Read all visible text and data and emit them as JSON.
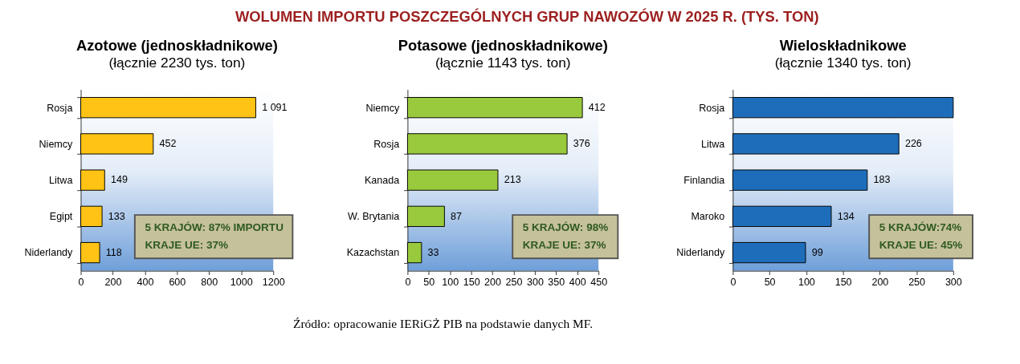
{
  "chart_data": [
    {
      "type": "other",
      "title": "WOLUMEN IMPORTU POSZCZEGÓLNYCH GRUP NAWOZÓW W 2025 R. (TYS. TON)"
    },
    {
      "type": "bar",
      "orientation": "horizontal",
      "title": "Azotowe (jednoskładnikowe)",
      "subtitle": "(łącznie 2230 tys. ton)",
      "categories": [
        "Rosja",
        "Niemcy",
        "Litwa",
        "Egipt",
        "Niderlandy"
      ],
      "values": [
        1091,
        452,
        149,
        133,
        118
      ],
      "color": "#fec314",
      "value_labels": [
        "1 091",
        "452",
        "149",
        "133",
        "118"
      ],
      "xlim": [
        0,
        1200
      ],
      "xticks": [
        0,
        200,
        400,
        600,
        800,
        1000,
        1200
      ],
      "annotations": [
        "5 KRAJÓW: 87% IMPORTU",
        "KRAJE UE: 37%"
      ]
    },
    {
      "type": "bar",
      "orientation": "horizontal",
      "title": "Potasowe (jednoskładnikowe)",
      "subtitle": "(łącznie 1143 tys. ton)",
      "categories": [
        "Niemcy",
        "Rosja",
        "Kanada",
        "W. Brytania",
        "Kazachstan"
      ],
      "values": [
        412,
        376,
        213,
        87,
        33
      ],
      "color": "#99c93c",
      "data_labels": true,
      "xlim": [
        0,
        450
      ],
      "xticks": [
        0,
        50,
        100,
        150,
        200,
        250,
        300,
        350,
        400,
        450
      ],
      "annotations": [
        "5 KRAJÓW: 98%",
        "KRAJE UE: 37%"
      ]
    },
    {
      "type": "bar",
      "orientation": "horizontal",
      "title": "Wieloskładnikowe",
      "subtitle": "(łącznie 1340 tys. ton)",
      "categories": [
        "Rosja",
        "Litwa",
        "Finlandia",
        "Maroko",
        "Niderlandy"
      ],
      "values": [
        300,
        226,
        183,
        134,
        99
      ],
      "color": "#1e6dba",
      "value_labels": [
        null,
        "226",
        "183",
        "134",
        "99"
      ],
      "xlim": [
        0,
        300
      ],
      "xticks": [
        0,
        50,
        100,
        150,
        200,
        250,
        300
      ],
      "annotations": [
        "5 KRAJÓW:74%",
        "KRAJE UE: 45%"
      ]
    },
    {
      "type": "other",
      "annotations": [
        "Źródło: opracowanie IERiGŻ PIB na podstawie danych MF."
      ]
    }
  ]
}
